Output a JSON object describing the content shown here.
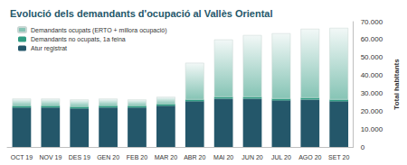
{
  "chart_data": {
    "type": "bar",
    "title": "Evolució dels demandants d'ocupació al Vallès Oriental",
    "y_label": "Total habitants",
    "categories": [
      "OCT 19",
      "NOV 19",
      "DES 19",
      "GEN 20",
      "FEB 20",
      "MAR 20",
      "ABR 20",
      "MAI 20",
      "JUN 20",
      "JUL 20",
      "AGO 20",
      "SET 20"
    ],
    "series": [
      {
        "name": "Atur registrat",
        "color": "#24576a",
        "values": [
          22000,
          22000,
          21500,
          22000,
          22000,
          23000,
          25500,
          27000,
          27000,
          26000,
          26500,
          25500
        ]
      },
      {
        "name": "Demandants no ocupats, 1a feina",
        "color": "#2f9c82",
        "values": [
          1000,
          1000,
          1000,
          1000,
          1000,
          1000,
          1000,
          1000,
          1000,
          1000,
          1000,
          1000
        ]
      },
      {
        "name": "Demandants ocupats (ERTO + millora ocupació)",
        "color": "#86c4b5",
        "values": [
          4000,
          4000,
          4000,
          4000,
          3500,
          4000,
          20500,
          32000,
          34500,
          36500,
          38500,
          40000
        ]
      }
    ],
    "stacked": true,
    "ylim": [
      0,
      70000
    ],
    "yticks": [
      0,
      {
        "value": 10000,
        "label": "10.000"
      },
      {
        "value": 20000,
        "label": "20.000"
      },
      {
        "value": 30000,
        "label": "30.000"
      },
      {
        "value": 40000,
        "label": "40.000"
      },
      {
        "value": 50000,
        "label": "50.000"
      },
      {
        "value": 60000,
        "label": "60.000"
      },
      {
        "value": 70000,
        "label": "70.000"
      }
    ],
    "grid": false,
    "legend": "top-left"
  }
}
